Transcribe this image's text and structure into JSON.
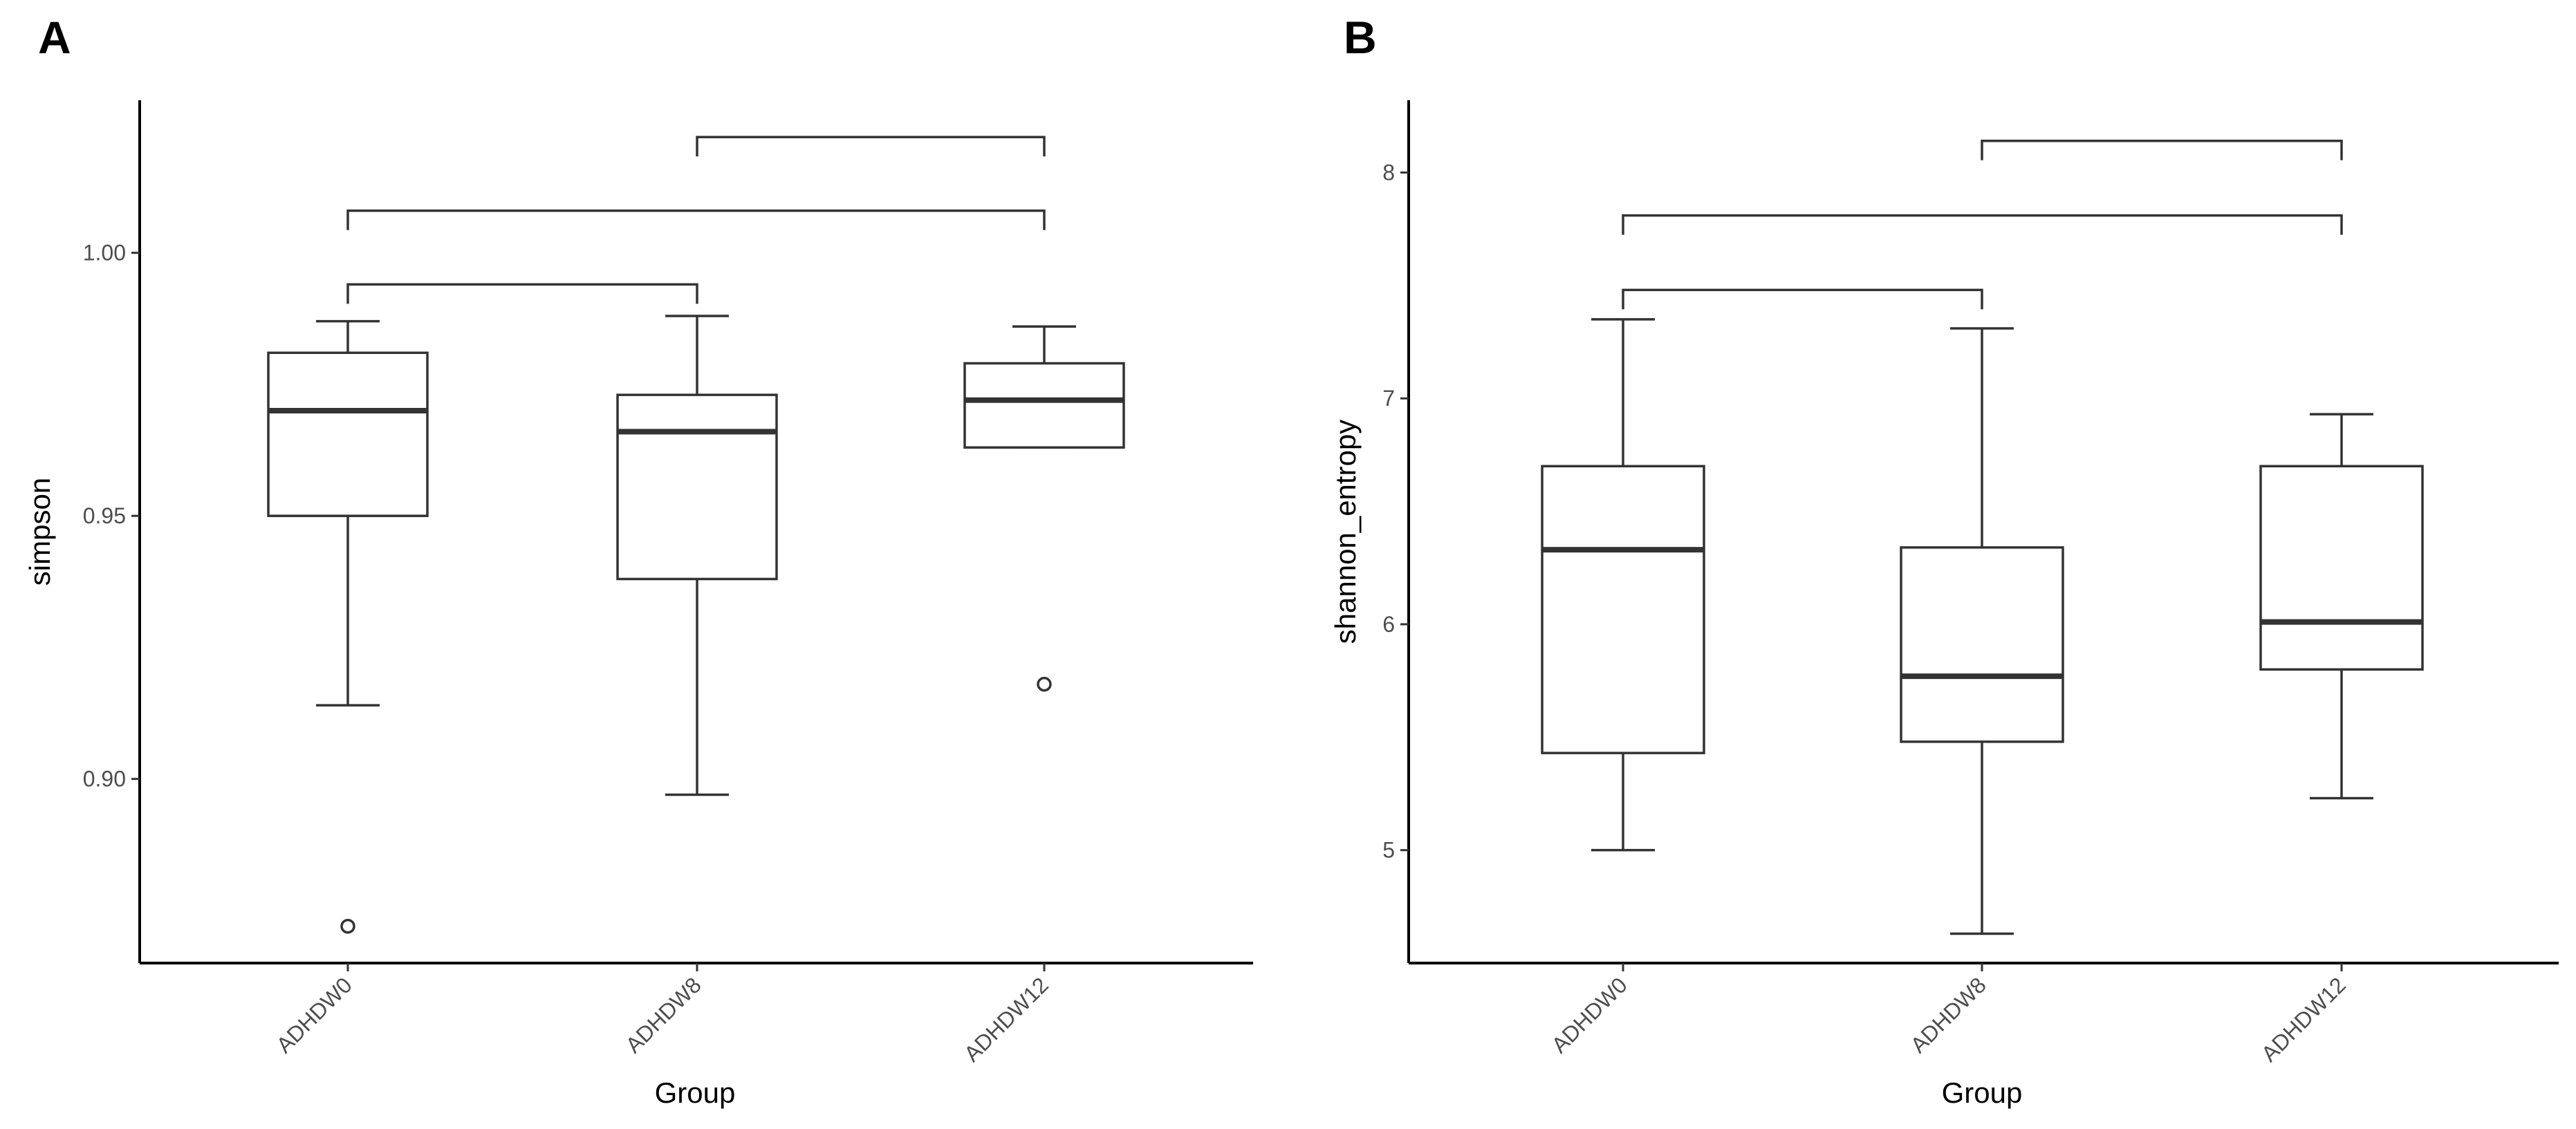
{
  "chart_data": [
    {
      "panel": "A",
      "type": "box",
      "xlabel": "Group",
      "ylabel": "simpson",
      "ylim": [
        0.865,
        1.029
      ],
      "yticks": [
        0.9,
        0.95,
        1.0
      ],
      "ytick_labels": [
        "0.90",
        "0.95",
        "1.00"
      ],
      "categories": [
        "ADHDW0",
        "ADHDW8",
        "ADHDW12"
      ],
      "colors": [
        "#00008b",
        "#ff7f00",
        "#458b74"
      ],
      "boxes": [
        {
          "group": "ADHDW0",
          "whisker_low": 0.914,
          "q1": 0.95,
          "median": 0.97,
          "q3": 0.981,
          "whisker_high": 0.987,
          "outliers": [
            0.872
          ]
        },
        {
          "group": "ADHDW8",
          "whisker_low": 0.897,
          "q1": 0.938,
          "median": 0.966,
          "q3": 0.973,
          "whisker_high": 0.988,
          "outliers": []
        },
        {
          "group": "ADHDW12",
          "whisker_low": 0.963,
          "q1": 0.963,
          "median": 0.972,
          "q3": 0.979,
          "whisker_high": 0.986,
          "outliers": [
            0.918
          ]
        }
      ],
      "comparisons": [
        {
          "from": "ADHDW0",
          "to": "ADHDW8",
          "y": 0.994
        },
        {
          "from": "ADHDW0",
          "to": "ADHDW12",
          "y": 1.008
        },
        {
          "from": "ADHDW8",
          "to": "ADHDW12",
          "y": 1.022
        }
      ]
    },
    {
      "panel": "B",
      "type": "box",
      "xlabel": "Group",
      "ylabel": "shannon_entropy",
      "ylim": [
        4.5,
        8.32
      ],
      "yticks": [
        5,
        6,
        7,
        8
      ],
      "ytick_labels": [
        "5",
        "6",
        "7",
        "8"
      ],
      "categories": [
        "ADHDW0",
        "ADHDW8",
        "ADHDW12"
      ],
      "colors": [
        "#00008b",
        "#ff7f00",
        "#458b74"
      ],
      "boxes": [
        {
          "group": "ADHDW0",
          "whisker_low": 5.0,
          "q1": 5.43,
          "median": 6.33,
          "q3": 6.7,
          "whisker_high": 7.35,
          "outliers": []
        },
        {
          "group": "ADHDW8",
          "whisker_low": 4.63,
          "q1": 5.48,
          "median": 5.77,
          "q3": 6.34,
          "whisker_high": 7.31,
          "outliers": []
        },
        {
          "group": "ADHDW12",
          "whisker_low": 5.23,
          "q1": 5.8,
          "median": 6.01,
          "q3": 6.7,
          "whisker_high": 6.93,
          "outliers": []
        }
      ],
      "comparisons": [
        {
          "from": "ADHDW0",
          "to": "ADHDW8",
          "y": 7.48
        },
        {
          "from": "ADHDW0",
          "to": "ADHDW12",
          "y": 7.81
        },
        {
          "from": "ADHDW8",
          "to": "ADHDW12",
          "y": 8.14
        }
      ]
    }
  ],
  "panels": {
    "a_label": "A",
    "b_label": "B"
  }
}
